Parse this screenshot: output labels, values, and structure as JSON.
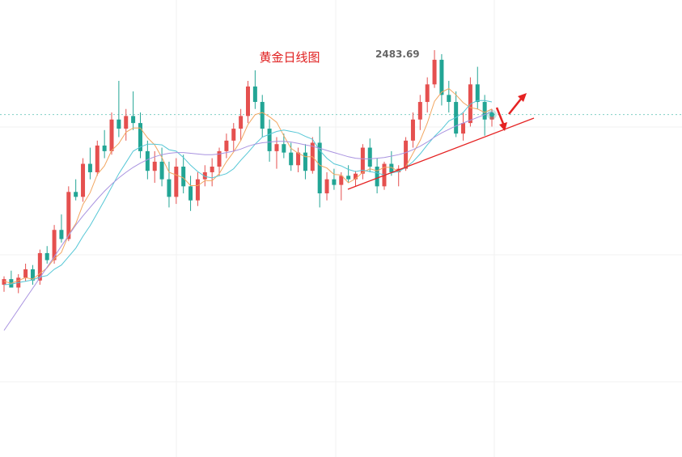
{
  "chart_data": {
    "type": "candlestick",
    "title": "黄金日线图",
    "annotations": [
      "2483.69"
    ],
    "ylim": [
      1905,
      2555
    ],
    "up_color": "#e5504f",
    "down_color": "#22a595",
    "open": [
      2150,
      2158,
      2146,
      2160,
      2172,
      2156,
      2195,
      2185,
      2228,
      2215,
      2282,
      2275,
      2322,
      2310,
      2348,
      2340,
      2385,
      2372,
      2390,
      2380,
      2340,
      2312,
      2325,
      2300,
      2275,
      2318,
      2290,
      2270,
      2300,
      2310,
      2318,
      2340,
      2355,
      2372,
      2390,
      2432,
      2410,
      2372,
      2340,
      2350,
      2338,
      2320,
      2338,
      2312,
      2352,
      2280,
      2300,
      2292,
      2305,
      2300,
      2308,
      2345,
      2318,
      2290,
      2322,
      2310,
      2315,
      2355,
      2385,
      2410,
      2435,
      2470,
      2420,
      2410,
      2365,
      2380,
      2435,
      2410,
      2385
    ],
    "high": [
      2162,
      2170,
      2165,
      2180,
      2178,
      2200,
      2205,
      2235,
      2250,
      2290,
      2300,
      2330,
      2345,
      2355,
      2370,
      2395,
      2440,
      2400,
      2425,
      2395,
      2355,
      2340,
      2345,
      2325,
      2330,
      2335,
      2305,
      2310,
      2320,
      2330,
      2345,
      2365,
      2380,
      2400,
      2440,
      2455,
      2420,
      2385,
      2360,
      2365,
      2352,
      2345,
      2350,
      2360,
      2375,
      2310,
      2315,
      2310,
      2320,
      2312,
      2350,
      2358,
      2330,
      2325,
      2340,
      2320,
      2360,
      2395,
      2420,
      2445,
      2483.69,
      2478,
      2440,
      2425,
      2395,
      2445,
      2460,
      2420,
      2400
    ],
    "low": [
      2140,
      2150,
      2138,
      2155,
      2150,
      2150,
      2180,
      2180,
      2210,
      2212,
      2270,
      2268,
      2300,
      2305,
      2330,
      2335,
      2360,
      2355,
      2370,
      2330,
      2300,
      2295,
      2290,
      2260,
      2265,
      2280,
      2255,
      2262,
      2290,
      2290,
      2305,
      2330,
      2340,
      2355,
      2380,
      2400,
      2360,
      2325,
      2315,
      2330,
      2312,
      2310,
      2300,
      2308,
      2260,
      2270,
      2285,
      2270,
      2295,
      2290,
      2300,
      2310,
      2280,
      2285,
      2305,
      2290,
      2312,
      2345,
      2370,
      2395,
      2430,
      2405,
      2395,
      2360,
      2355,
      2375,
      2400,
      2362,
      2375
    ],
    "close": [
      2158,
      2146,
      2160,
      2172,
      2156,
      2195,
      2185,
      2228,
      2215,
      2282,
      2275,
      2322,
      2310,
      2348,
      2340,
      2385,
      2372,
      2390,
      2380,
      2340,
      2312,
      2325,
      2300,
      2275,
      2318,
      2290,
      2270,
      2300,
      2310,
      2318,
      2340,
      2355,
      2372,
      2390,
      2432,
      2410,
      2372,
      2340,
      2350,
      2338,
      2320,
      2338,
      2312,
      2352,
      2280,
      2300,
      2292,
      2305,
      2300,
      2308,
      2345,
      2318,
      2290,
      2322,
      2310,
      2315,
      2355,
      2385,
      2410,
      2435,
      2470,
      2420,
      2410,
      2365,
      2380,
      2435,
      2410,
      2385,
      2392
    ],
    "lines": [
      {
        "color": "#f2a660",
        "values": [
          2155,
          2152,
          2156,
          2160,
          2158,
          2166,
          2174,
          2187,
          2196,
          2221,
          2237,
          2264,
          2281,
          2307,
          2319,
          2341,
          2351,
          2367,
          2373,
          2373,
          2359,
          2349,
          2331,
          2310,
          2306,
          2302,
          2291,
          2291,
          2298,
          2298,
          2308,
          2325,
          2339,
          2355,
          2378,
          2392,
          2395,
          2389,
          2381,
          2362,
          2344,
          2337,
          2332,
          2332,
          2320,
          2316,
          2307,
          2306,
          2295,
          2301,
          2310,
          2315,
          2312,
          2317,
          2317,
          2311,
          2318,
          2337,
          2355,
          2380,
          2411,
          2424,
          2429,
          2420,
          2409,
          2402,
          2400,
          2395,
          2400
        ]
      },
      {
        "color": "#56c7d6",
        "values": [
          2150,
          2151,
          2153,
          2155,
          2157,
          2161,
          2163,
          2172,
          2178,
          2190,
          2202,
          2219,
          2234,
          2252,
          2270,
          2289,
          2308,
          2324,
          2340,
          2346,
          2350,
          2350,
          2349,
          2342,
          2340,
          2331,
          2320,
          2311,
          2304,
          2302,
          2305,
          2308,
          2315,
          2327,
          2338,
          2350,
          2360,
          2364,
          2368,
          2370,
          2368,
          2366,
          2361,
          2357,
          2341,
          2330,
          2322,
          2319,
          2314,
          2311,
          2313,
          2311,
          2309,
          2306,
          2309,
          2311,
          2317,
          2325,
          2336,
          2349,
          2361,
          2371,
          2383,
          2388,
          2395,
          2407,
          2412,
          2412,
          2410
        ]
      },
      {
        "color": "#a993e0",
        "values": [
          2085,
          2100,
          2115,
          2130,
          2145,
          2160,
          2175,
          2190,
          2205,
          2220,
          2235,
          2248,
          2260,
          2272,
          2283,
          2293,
          2302,
          2310,
          2317,
          2323,
          2328,
          2332,
          2335,
          2337,
          2338,
          2338,
          2337,
          2336,
          2335,
          2335,
          2336,
          2338,
          2340,
          2343,
          2347,
          2350,
          2352,
          2353,
          2354,
          2354,
          2353,
          2351,
          2349,
          2347,
          2344,
          2341,
          2338,
          2335,
          2332,
          2330,
          2329,
          2329,
          2330,
          2331,
          2333,
          2335,
          2338,
          2342,
          2347,
          2353,
          2360,
          2366,
          2371,
          2376,
          2380,
          2384,
          2388,
          2392,
          2396
        ]
      }
    ]
  }
}
